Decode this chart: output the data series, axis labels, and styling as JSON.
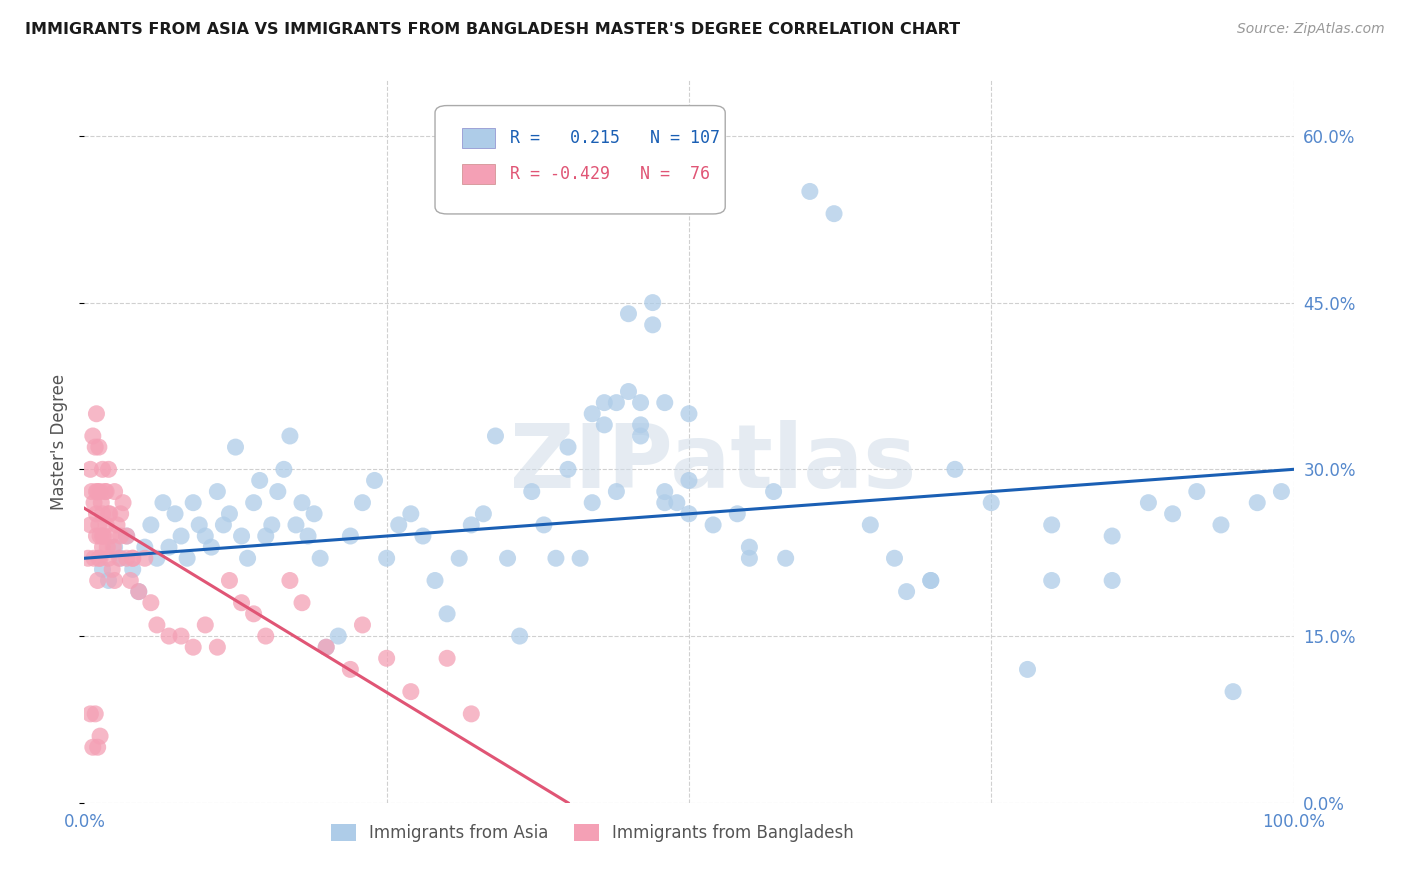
{
  "title": "IMMIGRANTS FROM ASIA VS IMMIGRANTS FROM BANGLADESH MASTER'S DEGREE CORRELATION CHART",
  "source": "Source: ZipAtlas.com",
  "ylabel": "Master's Degree",
  "xlim": [
    0.0,
    100.0
  ],
  "ylim": [
    0.0,
    65.0
  ],
  "yticks": [
    0.0,
    15.0,
    30.0,
    45.0,
    60.0
  ],
  "xticks": [
    0.0,
    100.0
  ],
  "xtick_minor": [
    25.0,
    50.0,
    75.0
  ],
  "blue_R": 0.215,
  "blue_N": 107,
  "pink_R": -0.429,
  "pink_N": 76,
  "blue_color": "#aecce8",
  "blue_line_color": "#1a5fb4",
  "pink_color": "#f4a0b5",
  "pink_line_color": "#e05575",
  "legend_label_blue": "Immigrants from Asia",
  "legend_label_pink": "Immigrants from Bangladesh",
  "blue_line_x0": 0.0,
  "blue_line_y0": 22.0,
  "blue_line_x1": 100.0,
  "blue_line_y1": 30.0,
  "pink_line_x0": 0.0,
  "pink_line_y0": 26.5,
  "pink_line_x1": 40.0,
  "pink_line_y1": 0.0,
  "blue_scatter_x": [
    1.5,
    2.0,
    2.5,
    3.0,
    3.5,
    4.0,
    4.5,
    5.0,
    5.5,
    6.0,
    6.5,
    7.0,
    7.5,
    8.0,
    8.5,
    9.0,
    9.5,
    10.0,
    10.5,
    11.0,
    11.5,
    12.0,
    12.5,
    13.0,
    13.5,
    14.0,
    14.5,
    15.0,
    15.5,
    16.0,
    16.5,
    17.0,
    17.5,
    18.0,
    18.5,
    19.0,
    19.5,
    20.0,
    21.0,
    22.0,
    23.0,
    24.0,
    25.0,
    26.0,
    27.0,
    28.0,
    29.0,
    30.0,
    31.0,
    32.0,
    33.0,
    34.0,
    35.0,
    36.0,
    37.0,
    38.0,
    39.0,
    40.0,
    41.0,
    42.0,
    43.0,
    44.0,
    45.0,
    46.0,
    47.0,
    48.0,
    49.0,
    50.0,
    52.0,
    54.0,
    55.0,
    57.0,
    58.0,
    60.0,
    62.0,
    65.0,
    67.0,
    70.0,
    72.0,
    75.0,
    78.0,
    80.0,
    85.0,
    88.0,
    90.0,
    92.0,
    94.0,
    95.0,
    97.0,
    99.0,
    47.0,
    48.0,
    50.0,
    45.0,
    46.0,
    40.0,
    42.0,
    43.0,
    44.0,
    46.0,
    48.0,
    50.0,
    55.0,
    68.0,
    70.0,
    80.0,
    85.0
  ],
  "blue_scatter_y": [
    21.0,
    20.0,
    23.0,
    22.0,
    24.0,
    21.0,
    19.0,
    23.0,
    25.0,
    22.0,
    27.0,
    23.0,
    26.0,
    24.0,
    22.0,
    27.0,
    25.0,
    24.0,
    23.0,
    28.0,
    25.0,
    26.0,
    32.0,
    24.0,
    22.0,
    27.0,
    29.0,
    24.0,
    25.0,
    28.0,
    30.0,
    33.0,
    25.0,
    27.0,
    24.0,
    26.0,
    22.0,
    14.0,
    15.0,
    24.0,
    27.0,
    29.0,
    22.0,
    25.0,
    26.0,
    24.0,
    20.0,
    17.0,
    22.0,
    25.0,
    26.0,
    33.0,
    22.0,
    15.0,
    28.0,
    25.0,
    22.0,
    32.0,
    22.0,
    27.0,
    36.0,
    28.0,
    44.0,
    36.0,
    43.0,
    27.0,
    27.0,
    29.0,
    25.0,
    26.0,
    22.0,
    28.0,
    22.0,
    55.0,
    53.0,
    25.0,
    22.0,
    20.0,
    30.0,
    27.0,
    12.0,
    25.0,
    24.0,
    27.0,
    26.0,
    28.0,
    25.0,
    10.0,
    27.0,
    28.0,
    45.0,
    36.0,
    35.0,
    37.0,
    34.0,
    30.0,
    35.0,
    34.0,
    36.0,
    33.0,
    28.0,
    26.0,
    23.0,
    19.0,
    20.0,
    20.0,
    20.0
  ],
  "pink_scatter_x": [
    0.3,
    0.5,
    0.5,
    0.6,
    0.7,
    0.8,
    0.9,
    1.0,
    1.0,
    1.1,
    1.1,
    1.2,
    1.2,
    1.3,
    1.3,
    1.4,
    1.5,
    1.5,
    1.6,
    1.7,
    1.8,
    1.9,
    2.0,
    2.1,
    2.2,
    2.3,
    2.4,
    2.5,
    2.7,
    2.9,
    3.0,
    3.2,
    3.5,
    3.8,
    4.0,
    4.5,
    5.0,
    5.5,
    6.0,
    7.0,
    8.0,
    9.0,
    10.0,
    11.0,
    12.0,
    13.0,
    14.0,
    15.0,
    17.0,
    18.0,
    20.0,
    22.0,
    23.0,
    25.0,
    27.0,
    30.0,
    32.0,
    2.0,
    2.5,
    3.0,
    3.5,
    4.0,
    1.0,
    1.2,
    1.5,
    1.8,
    2.0,
    0.8,
    1.0,
    1.3,
    1.5,
    0.5,
    0.7,
    0.9,
    1.1,
    1.3
  ],
  "pink_scatter_y": [
    22.0,
    30.0,
    25.0,
    28.0,
    33.0,
    27.0,
    32.0,
    26.0,
    24.0,
    28.0,
    20.0,
    25.0,
    22.0,
    24.0,
    28.0,
    27.0,
    23.0,
    26.0,
    24.0,
    28.0,
    25.0,
    23.0,
    22.0,
    26.0,
    24.0,
    21.0,
    23.0,
    20.0,
    25.0,
    22.0,
    24.0,
    27.0,
    22.0,
    20.0,
    22.0,
    19.0,
    22.0,
    18.0,
    16.0,
    15.0,
    15.0,
    14.0,
    16.0,
    14.0,
    20.0,
    18.0,
    17.0,
    15.0,
    20.0,
    18.0,
    14.0,
    12.0,
    16.0,
    13.0,
    10.0,
    13.0,
    8.0,
    30.0,
    28.0,
    26.0,
    24.0,
    22.0,
    35.0,
    32.0,
    30.0,
    28.0,
    26.0,
    22.0,
    28.0,
    22.0,
    24.0,
    8.0,
    5.0,
    8.0,
    5.0,
    6.0
  ],
  "watermark_text": "ZIPatlas",
  "background_color": "#ffffff",
  "grid_color": "#d0d0d0",
  "tick_color": "#5588cc"
}
